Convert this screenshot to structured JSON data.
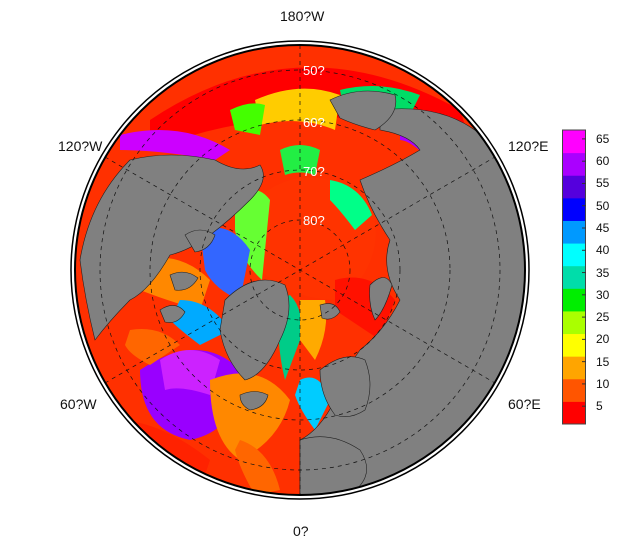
{
  "map": {
    "projection": "polar-stereographic-north",
    "land_color": "#808080",
    "background_color": "#ffffff",
    "border_color": "#000000",
    "grid_style": "dashed",
    "longitude_labels": {
      "top": "180?W",
      "upper_left": "120?W",
      "upper_right": "120?E",
      "lower_left": "60?W",
      "lower_right": "60?E",
      "bottom": "0?"
    },
    "latitude_labels": [
      "50?",
      "60?",
      "70?",
      "80?"
    ]
  },
  "colorbar": {
    "ticks": [
      "65",
      "60",
      "55",
      "50",
      "45",
      "40",
      "35",
      "30",
      "25",
      "20",
      "15",
      "10",
      "5"
    ],
    "colors": [
      "#ff0000",
      "#ff5500",
      "#ffa500",
      "#ffff00",
      "#aaff00",
      "#00ee00",
      "#00ddaa",
      "#00ffff",
      "#0099ff",
      "#0000ff",
      "#5500dd",
      "#aa00ff",
      "#ff00ff"
    ],
    "min": 1,
    "max": 67
  }
}
